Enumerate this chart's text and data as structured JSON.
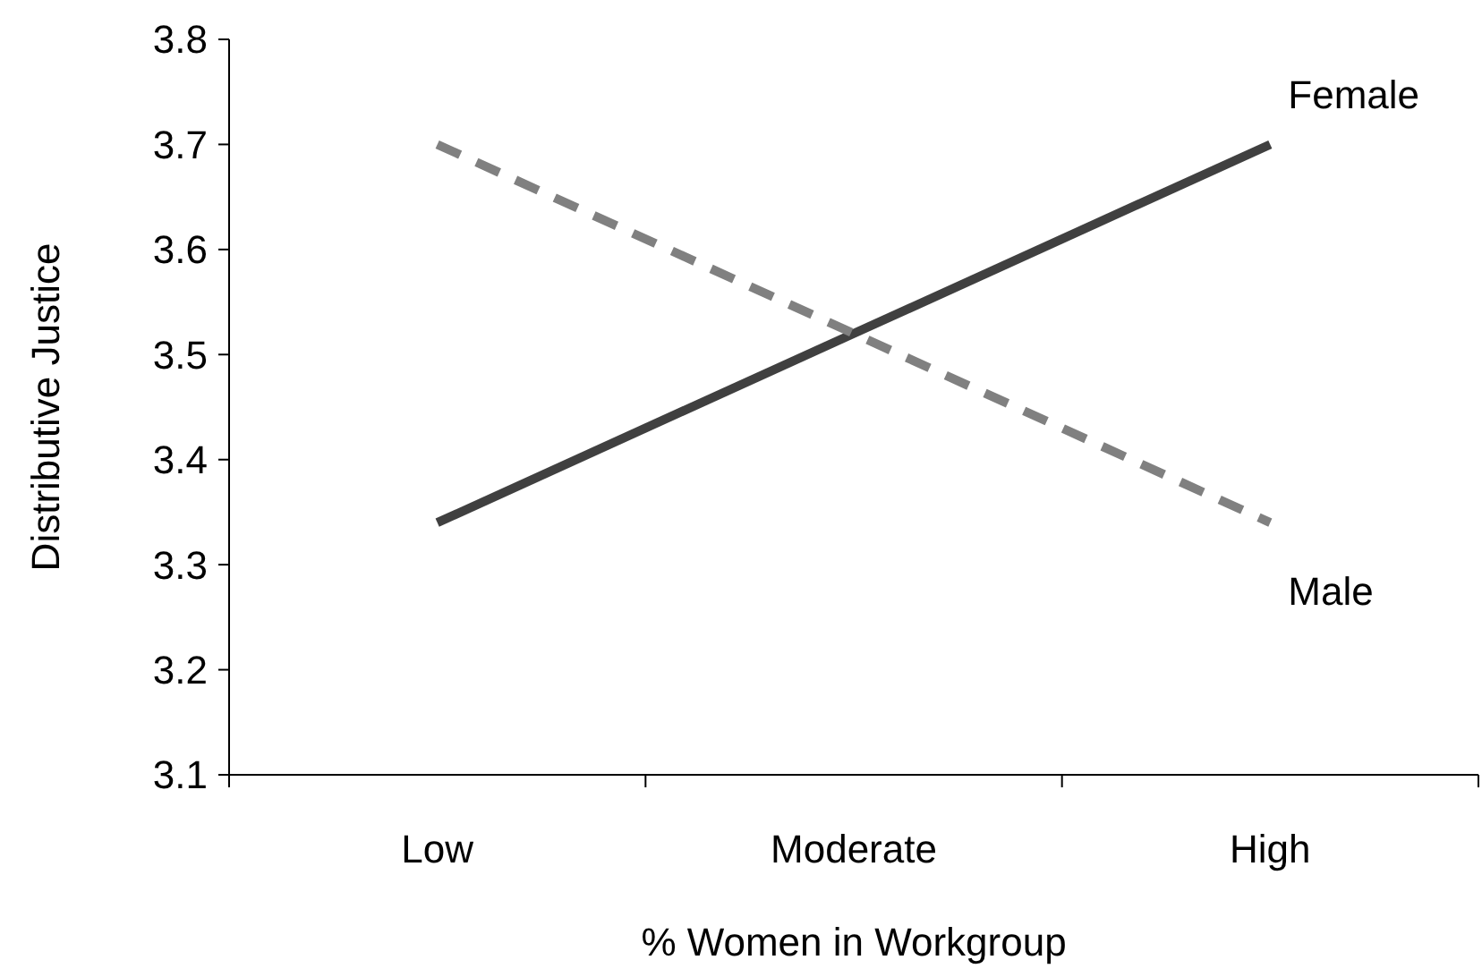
{
  "chart_data": {
    "type": "line",
    "xlabel": "% Women in Workgroup",
    "ylabel": "Distributive Justice",
    "categories": [
      "Low",
      "Moderate",
      "High"
    ],
    "series": [
      {
        "name": "Female",
        "color": "#404040",
        "line_style": "solid",
        "values": [
          3.34,
          3.52,
          3.7
        ]
      },
      {
        "name": "Male",
        "color": "#808080",
        "line_style": "dashed",
        "values": [
          3.7,
          3.52,
          3.34
        ]
      }
    ],
    "ylim": [
      3.1,
      3.8
    ],
    "yticks": [
      3.1,
      3.2,
      3.3,
      3.4,
      3.5,
      3.6,
      3.7,
      3.8
    ],
    "grid": false
  }
}
